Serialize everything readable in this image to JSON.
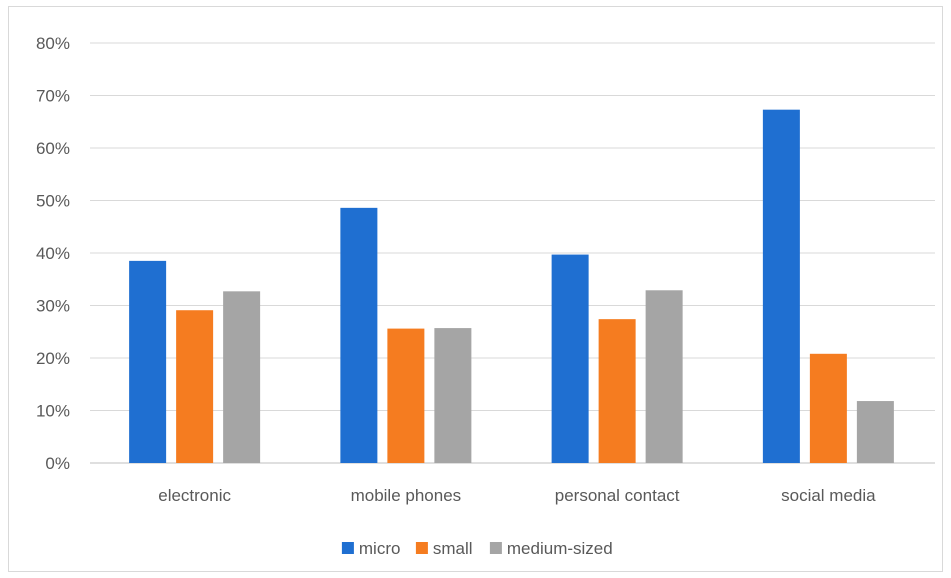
{
  "chart_data": {
    "type": "bar",
    "categories": [
      "electronic",
      "mobile phones",
      "personal contact",
      "social media"
    ],
    "series": [
      {
        "name": "micro",
        "color": "#1f6fd1",
        "values": [
          38.5,
          48.6,
          39.7,
          67.3
        ]
      },
      {
        "name": "small",
        "color": "#f57c20",
        "values": [
          29.1,
          25.6,
          27.4,
          20.8
        ]
      },
      {
        "name": "medium-sized",
        "color": "#a5a5a5",
        "values": [
          32.7,
          25.7,
          32.9,
          11.8
        ]
      }
    ],
    "y_ticks": [
      "0%",
      "10%",
      "20%",
      "30%",
      "40%",
      "50%",
      "60%",
      "70%",
      "80%"
    ],
    "ylim": [
      0,
      80
    ],
    "y_unit": "%",
    "grid": true,
    "legend_position": "bottom"
  }
}
